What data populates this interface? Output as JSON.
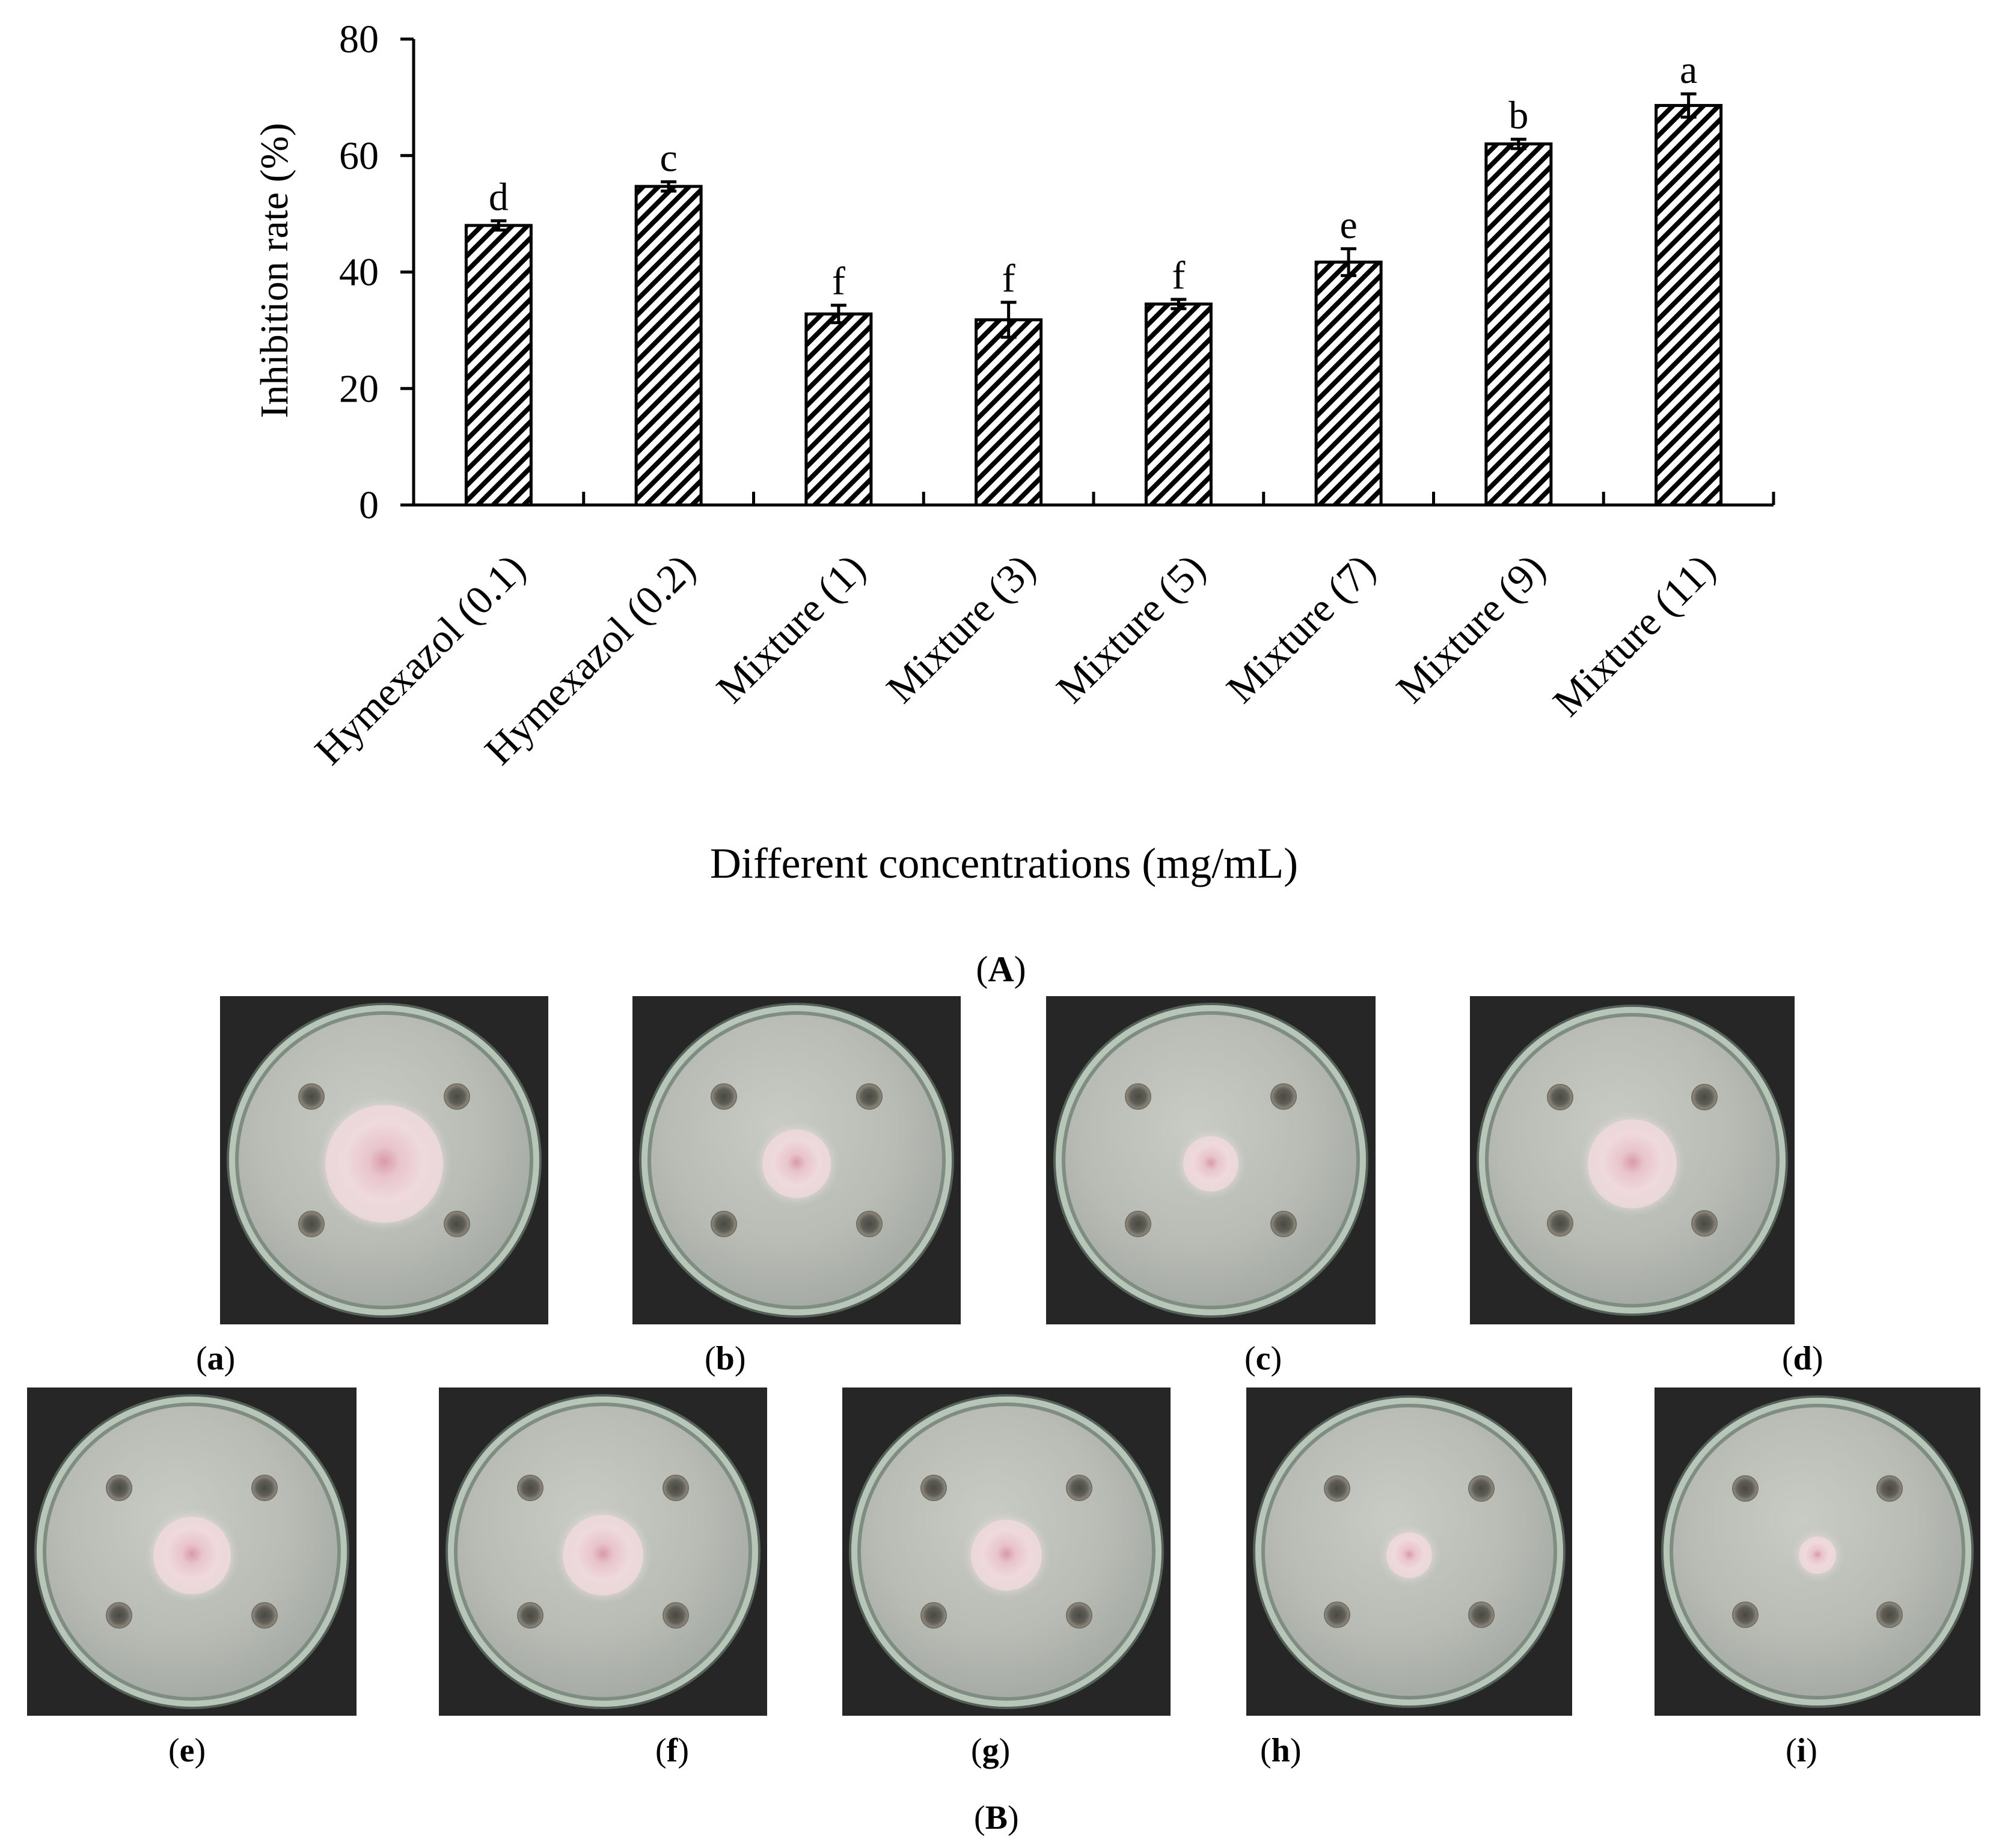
{
  "chart_data": {
    "type": "bar",
    "categories": [
      "Hymexazol (0.1)",
      "Hymexazol (0.2)",
      "Mixture (1)",
      "Mixture (3)",
      "Mixture (5)",
      "Mixture (7)",
      "Mixture (9)",
      "Mixture (11)"
    ],
    "values": [
      48,
      54.7,
      32.8,
      31.8,
      34.5,
      41.7,
      62,
      68.6
    ],
    "errors": [
      0.8,
      0.8,
      1.5,
      3,
      0.8,
      2.3,
      0.8,
      2
    ],
    "significance": [
      "d",
      "c",
      "f",
      "f",
      "f",
      "e",
      "b",
      "a"
    ],
    "ylabel": "Inhibition rate (%)",
    "xlabel": "Different concentrations (mg/mL)",
    "ylim": [
      0,
      80
    ],
    "yticks": [
      "0",
      "20",
      "40",
      "60",
      "80"
    ],
    "bar_fill": "diagonal-hatch",
    "panel_label": {
      "open": "(",
      "letter": "A",
      "close": ")"
    }
  },
  "photos": {
    "panel_label": {
      "open": "(",
      "letter": "B",
      "close": ")"
    },
    "plates": [
      {
        "label": "a",
        "colony_fraction": 0.38
      },
      {
        "label": "b",
        "colony_fraction": 0.22
      },
      {
        "label": "c",
        "colony_fraction": 0.18
      },
      {
        "label": "d",
        "colony_fraction": 0.29
      },
      {
        "label": "e",
        "colony_fraction": 0.25
      },
      {
        "label": "f",
        "colony_fraction": 0.26
      },
      {
        "label": "g",
        "colony_fraction": 0.23
      },
      {
        "label": "h",
        "colony_fraction": 0.15
      },
      {
        "label": "i",
        "colony_fraction": 0.12
      }
    ]
  },
  "colors": {
    "ink": "#000000",
    "background": "#ffffff",
    "plate_bg": "#262626",
    "colony": "#e9d3d6"
  }
}
